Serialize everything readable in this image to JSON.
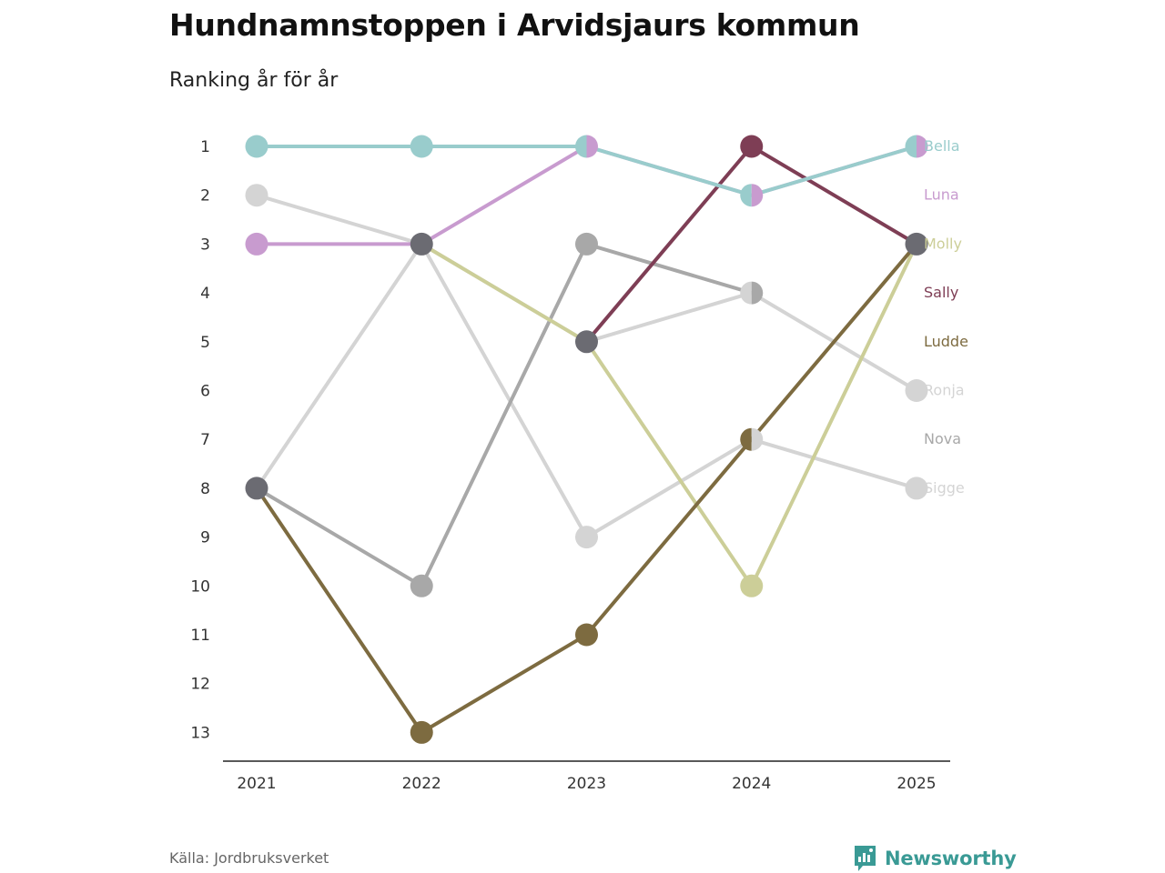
{
  "header": {
    "title": "Hundnamnstoppen i Arvidsjaurs kommun",
    "subtitle": "Ranking år för år"
  },
  "footer": {
    "source": "Källa: Jordbruksverket",
    "brand": "Newsworthy",
    "brand_color": "#3a9a95"
  },
  "chart_data": {
    "type": "line",
    "title": "Hundnamnstoppen i Arvidsjaurs kommun",
    "subtitle": "Ranking år för år",
    "xlabel": "",
    "ylabel": "",
    "x": [
      "2021",
      "2022",
      "2023",
      "2024",
      "2025"
    ],
    "y_ticks": [
      "1",
      "2",
      "3",
      "4",
      "5",
      "6",
      "7",
      "8",
      "9",
      "10",
      "11",
      "12",
      "13"
    ],
    "ylim": [
      1,
      13
    ],
    "y_inverted": true,
    "grid": false,
    "legend": "direct labels right",
    "series": [
      {
        "name": "Sigge",
        "color": "#d4d4d4",
        "values": [
          8,
          3,
          9,
          7,
          8
        ]
      },
      {
        "name": "Nova",
        "color": "#a8a8a8",
        "values": [
          8,
          10,
          3,
          4,
          null
        ]
      },
      {
        "name": "Ronja",
        "color": "#d4d4d4",
        "values": [
          2,
          3,
          5,
          4,
          6
        ]
      },
      {
        "name": "Molly",
        "color": "#ccce98",
        "values": [
          null,
          3,
          5,
          10,
          3
        ]
      },
      {
        "name": "Ludde",
        "color": "#7d6b40",
        "values": [
          8,
          13,
          11,
          7,
          3
        ]
      },
      {
        "name": "Sally",
        "color": "#7e3e55",
        "values": [
          null,
          null,
          5,
          1,
          3
        ]
      },
      {
        "name": "Luna",
        "color": "#c89bcf",
        "values": [
          3,
          3,
          1,
          2,
          1
        ]
      },
      {
        "name": "Bella",
        "color": "#99cccc",
        "values": [
          1,
          1,
          1,
          2,
          1
        ]
      }
    ],
    "label_order": [
      "Bella",
      "Luna",
      "Molly",
      "Sally",
      "Ludde",
      "Ronja",
      "Nova",
      "Sigge"
    ],
    "other_color": "#6b6b72"
  }
}
